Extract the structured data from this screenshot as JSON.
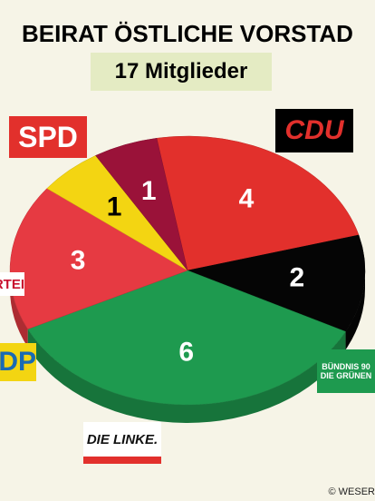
{
  "chart_data": {
    "type": "pie",
    "title": "BEIRAT ÖSTLICHE VORSTAD",
    "subtitle": "17 Mitglieder",
    "categories": [
      "SPD",
      "CDU",
      "BÜNDNIS 90 DIE GRÜNEN",
      "DIE LINKE.",
      "DP",
      "RTEI"
    ],
    "values": [
      4,
      2,
      6,
      3,
      1,
      1
    ],
    "colors": [
      "#e2302c",
      "#050505",
      "#1e9a4f",
      "#e63a42",
      "#f3d512",
      "#9a1239"
    ],
    "credit": "© WESER"
  }
}
